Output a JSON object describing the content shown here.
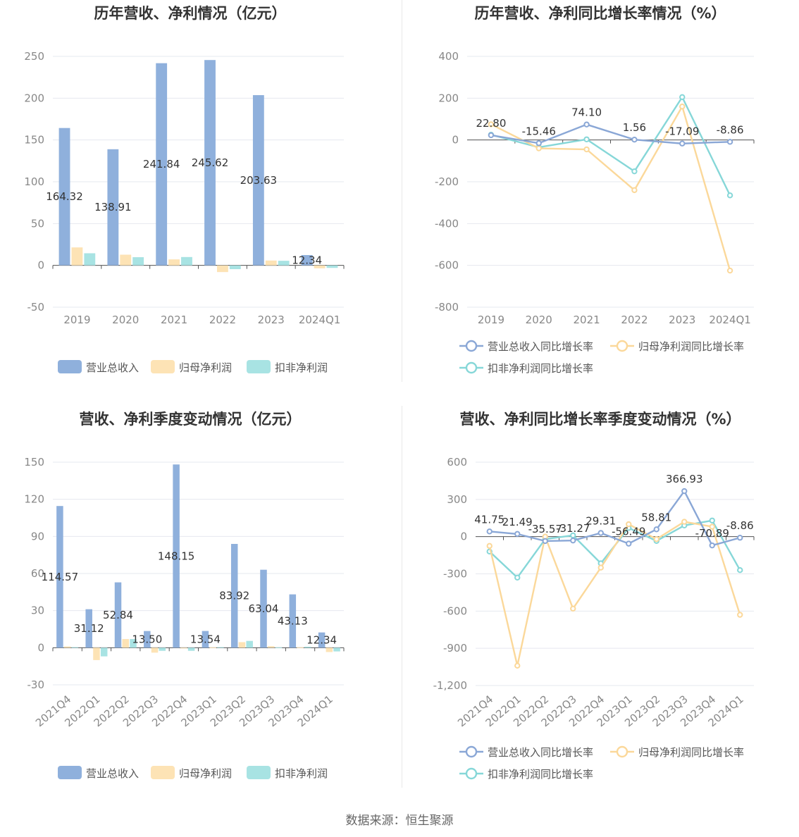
{
  "source": "数据来源：恒生聚源",
  "chart_data": [
    {
      "type": "bar",
      "title": "历年营收、净利情况（亿元）",
      "categories": [
        "2019",
        "2020",
        "2021",
        "2022",
        "2023",
        "2024Q1"
      ],
      "ylim": [
        -50,
        250
      ],
      "yticks": [
        -50,
        0,
        50,
        100,
        150,
        200,
        250
      ],
      "grid": true,
      "legend_position": "bottom",
      "series": [
        {
          "name": "营业总收入",
          "color": "#8fb0dc",
          "values": [
            164.32,
            138.91,
            241.84,
            245.62,
            203.63,
            12.34
          ],
          "labels": [
            "164.32",
            "138.91",
            "241.84",
            "245.62",
            "203.63",
            "12.34"
          ]
        },
        {
          "name": "归母净利润",
          "color": "#fde3b5",
          "values": [
            21.5,
            12.8,
            7.2,
            -8.0,
            5.8,
            -3.5
          ]
        },
        {
          "name": "扣非净利润",
          "color": "#a8e3e3",
          "values": [
            14.5,
            9.8,
            10.0,
            -4.5,
            5.5,
            -3.0
          ]
        }
      ]
    },
    {
      "type": "line",
      "title": "历年营收、净利同比增长率情况（%）",
      "categories": [
        "2019",
        "2020",
        "2021",
        "2022",
        "2023",
        "2024Q1"
      ],
      "ylim": [
        -800,
        400
      ],
      "yticks": [
        -800,
        -600,
        -400,
        -200,
        0,
        200,
        400
      ],
      "grid": true,
      "legend_position": "bottom",
      "series": [
        {
          "name": "营业总收入同比增长率",
          "color": "#8aa7d6",
          "values": [
            22.8,
            -15.46,
            74.1,
            1.56,
            -17.09,
            -8.86
          ],
          "labels": [
            "22.80",
            "-15.46",
            "74.10",
            "1.56",
            "-17.09",
            "-8.86"
          ]
        },
        {
          "name": "归母净利润同比增长率",
          "color": "#fbd89a",
          "values": [
            75,
            -40,
            -45,
            -240,
            160,
            -625
          ]
        },
        {
          "name": "扣非净利润同比增长率",
          "color": "#86d7d8",
          "values": [
            25,
            -35,
            3,
            -150,
            205,
            -265
          ]
        }
      ]
    },
    {
      "type": "bar",
      "title": "营收、净利季度变动情况（亿元）",
      "categories": [
        "2021Q4",
        "2022Q1",
        "2022Q2",
        "2022Q3",
        "2022Q4",
        "2023Q1",
        "2023Q2",
        "2023Q3",
        "2023Q4",
        "2024Q1"
      ],
      "ylim": [
        -30,
        150
      ],
      "yticks": [
        -30,
        0,
        30,
        60,
        90,
        120,
        150
      ],
      "grid": true,
      "legend_position": "bottom",
      "series": [
        {
          "name": "营业总收入",
          "color": "#8fb0dc",
          "values": [
            114.57,
            31.12,
            52.84,
            13.5,
            148.15,
            13.54,
            83.92,
            63.04,
            43.13,
            12.34
          ],
          "labels": [
            "114.57",
            "31.12",
            "52.84",
            "13.50",
            "148.15",
            "13.54",
            "83.92",
            "63.04",
            "43.13",
            "12.34"
          ]
        },
        {
          "name": "归母净利润",
          "color": "#fde3b5",
          "values": [
            1.0,
            -10.0,
            7.0,
            -4.0,
            -0.5,
            0.3,
            4.5,
            1.2,
            0.3,
            -3.5
          ]
        },
        {
          "name": "扣非净利润",
          "color": "#a8e3e3",
          "values": [
            0.5,
            -7.0,
            7.0,
            -2.5,
            -2.5,
            0.5,
            5.5,
            0.3,
            0.8,
            -3.0
          ]
        }
      ]
    },
    {
      "type": "line",
      "title": "营收、净利同比增长率季度变动情况（%）",
      "categories": [
        "2021Q4",
        "2022Q1",
        "2022Q2",
        "2022Q3",
        "2022Q4",
        "2023Q1",
        "2023Q2",
        "2023Q3",
        "2023Q4",
        "2024Q1"
      ],
      "ylim": [
        -1200,
        600
      ],
      "yticks": [
        -1200,
        -900,
        -600,
        -300,
        0,
        300,
        600
      ],
      "ytick_labels": [
        "-1,200",
        "-900",
        "-600",
        "-300",
        "0",
        "300",
        "600"
      ],
      "grid": true,
      "legend_position": "bottom",
      "series": [
        {
          "name": "营业总收入同比增长率",
          "color": "#8aa7d6",
          "values": [
            41.75,
            21.49,
            -35.57,
            -31.27,
            29.31,
            -56.49,
            58.81,
            366.93,
            -70.89,
            -8.86
          ],
          "labels": [
            "41.75",
            "21.49",
            "-35.57",
            "-31.27",
            "29.31",
            "-56.49",
            "58.81",
            "366.93",
            "-70.89",
            "-8.86"
          ]
        },
        {
          "name": "归母净利润同比增长率",
          "color": "#fbd89a",
          "values": [
            -75,
            -1040,
            0,
            -580,
            -250,
            100,
            -20,
            120,
            80,
            -630
          ]
        },
        {
          "name": "扣非净利润同比增长率",
          "color": "#86d7d8",
          "values": [
            -120,
            -330,
            -20,
            10,
            -215,
            70,
            -35,
            90,
            130,
            -270
          ]
        }
      ]
    }
  ]
}
